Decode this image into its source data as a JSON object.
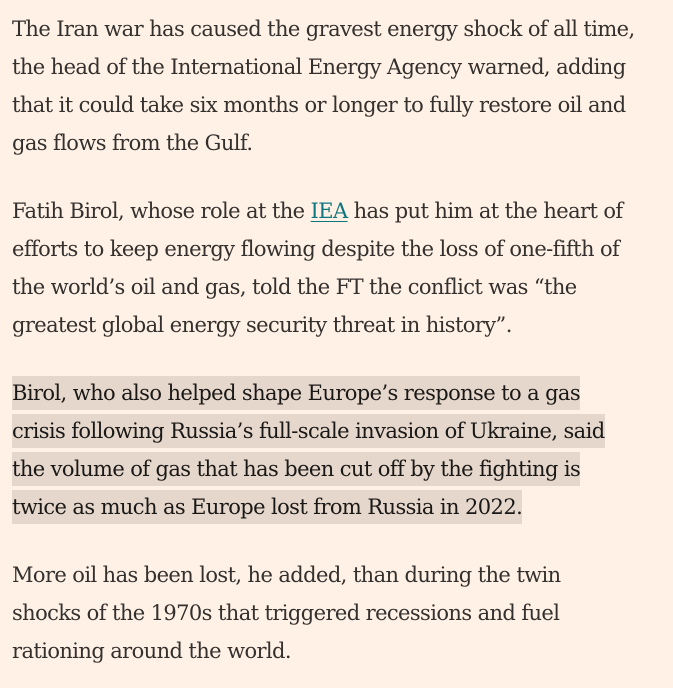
{
  "article": {
    "paragraphs": [
      {
        "lines": [
          "The Iran war has caused the gravest energy shock of all time,",
          "the head of the International Energy Agency warned, adding",
          "that it could take six months or longer to fully restore oil and",
          "gas flows from the Gulf."
        ]
      },
      {
        "line1_before": "Fatih Birol, whose role at the ",
        "link_text": "IEA",
        "line1_after": " has put him at the heart of",
        "lines_rest": [
          "efforts to keep energy flowing despite the loss of one-fifth of",
          "the world’s oil and gas, told the FT the conflict was “the",
          "greatest global energy security threat in history”."
        ]
      },
      {
        "highlighted": true,
        "lines": [
          "Birol, who also helped shape Europe’s response to a gas",
          "crisis following Russia’s full-scale invasion of Ukraine, said",
          "the volume of gas that has been cut off by the fighting is",
          "twice as much as Europe lost from Russia in 2022."
        ]
      },
      {
        "lines": [
          "More oil has been lost, he added, than during the twin",
          "shocks of the 1970s that triggered recessions and fuel",
          "rationing around the world."
        ]
      }
    ]
  },
  "colors": {
    "background": "#fff1e5",
    "text": "#33302e",
    "link": "#0d7680",
    "highlight": "#e5d7cb"
  }
}
